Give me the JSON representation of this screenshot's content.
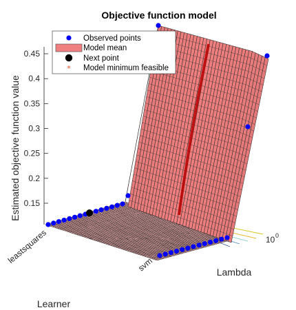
{
  "chart_data": {
    "type": "surface",
    "title": "Objective function model",
    "zlabel": "Estimated objective function value",
    "xlabel": "Lambda",
    "learner_label": "Learner",
    "learner_categories": [
      "leastsquares",
      "svm"
    ],
    "lambda_tick": "10",
    "lambda_tick_exp": "0",
    "zticks": [
      "0.15",
      "0.2",
      "0.25",
      "0.3",
      "0.35",
      "0.4",
      "0.45"
    ],
    "zlim": [
      0.12,
      0.46
    ],
    "legend": {
      "placement": "top-left",
      "entries": [
        {
          "label": "Observed points",
          "marker": "dot",
          "color": "#0000ff"
        },
        {
          "label": "Model mean",
          "marker": "patch",
          "color": "#f08080"
        },
        {
          "label": "Next point",
          "marker": "dot",
          "color": "#000000"
        },
        {
          "label": "Model minimum feasible",
          "marker": "asterisk",
          "color": "#e8502a"
        }
      ]
    },
    "surface_color": "#f08080",
    "observed_color": "#0000ff",
    "high_points_z": [
      0.45,
      0.305,
      0.14
    ]
  }
}
